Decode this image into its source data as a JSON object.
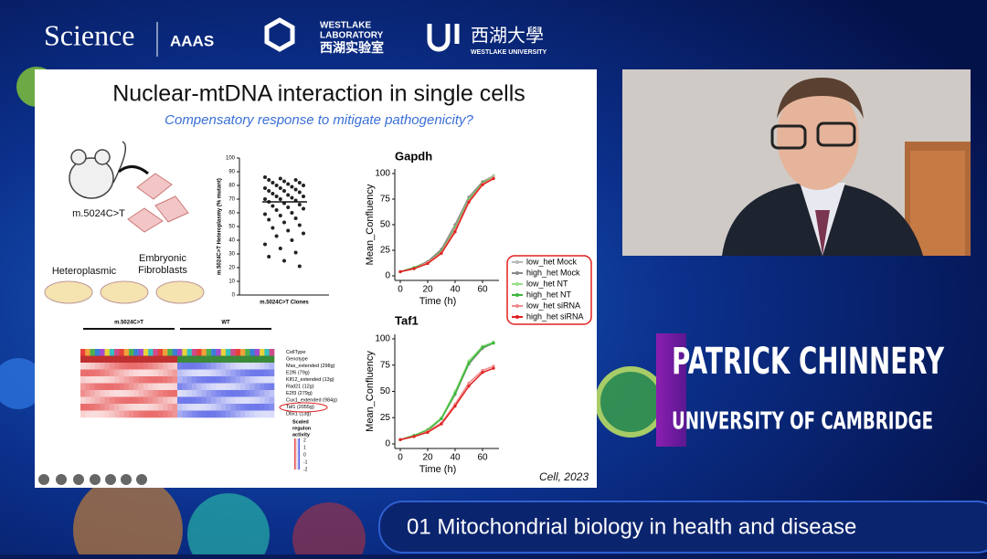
{
  "header": {
    "science": "Science",
    "aaas": "AAAS",
    "westlake_lab": [
      "WESTLAKE",
      "LABORATORY"
    ],
    "westlake_lab_cn": "西湖实验室",
    "westlake_uni_cn": "西湖大學",
    "westlake_uni": "WESTLAKE UNIVERSITY"
  },
  "slide": {
    "title": "Nuclear-mtDNA interaction in single cells",
    "subtitle": "Compensatory response to mitigate pathogenicity?",
    "mutation": "m.5024C>T",
    "fibroblasts": [
      "Embryonic",
      "Fibroblasts"
    ],
    "heteroplasmic": "Heteroplasmic",
    "citation": "Cell, 2023",
    "scatter": {
      "type": "scatter",
      "ylabel": "m.5024C>T Heteroplasmy (% mutant)",
      "xlabel": "m.5024C>T Clones",
      "ylim": [
        0,
        100
      ],
      "yticks": [
        0,
        10,
        20,
        30,
        40,
        50,
        60,
        70,
        80,
        90,
        100
      ],
      "median": 68,
      "values": [
        86,
        85,
        84,
        84,
        83,
        82,
        82,
        81,
        80,
        80,
        79,
        78,
        78,
        77,
        76,
        76,
        75,
        74,
        73,
        72,
        72,
        71,
        70,
        70,
        69,
        68,
        67,
        66,
        65,
        64,
        63,
        62,
        60,
        59,
        58,
        56,
        55,
        53,
        51,
        49,
        47,
        45,
        43,
        40,
        37,
        34,
        31,
        28,
        25,
        21
      ]
    },
    "line_charts": [
      {
        "type": "line",
        "title": "Gapdh",
        "xlabel": "Time (h)",
        "ylabel": "Mean_Confluency",
        "xlim": [
          -4,
          72
        ],
        "ylim": [
          0,
          100
        ],
        "xticks": [
          0,
          20,
          40,
          60
        ],
        "yticks": [
          0,
          25,
          50,
          75,
          100
        ],
        "x": [
          0,
          10,
          20,
          30,
          40,
          50,
          60,
          68
        ],
        "series": [
          {
            "name": "low_het Mock",
            "color": "#b8b8b8",
            "values": [
              4,
              8,
              14,
              25,
              49,
              76,
              92,
              98
            ]
          },
          {
            "name": "high_het Mock",
            "color": "#8a8a8a",
            "values": [
              4,
              8,
              14,
              26,
              50,
              77,
              92,
              97
            ]
          },
          {
            "name": "low_het NT",
            "color": "#9be08a",
            "values": [
              4,
              8,
              13,
              24,
              47,
              75,
              91,
              97
            ]
          },
          {
            "name": "high_het NT",
            "color": "#3cb83c",
            "values": [
              4,
              8,
              13,
              24,
              46,
              74,
              91,
              96
            ]
          },
          {
            "name": "low_het siRNA",
            "color": "#f08a8a",
            "values": [
              4,
              7,
              13,
              23,
              45,
              73,
              90,
              96
            ]
          },
          {
            "name": "high_het siRNA",
            "color": "#e02020",
            "values": [
              4,
              7,
              12,
              22,
              43,
              72,
              89,
              95
            ]
          }
        ]
      },
      {
        "type": "line",
        "title": "Taf1",
        "xlabel": "Time (h)",
        "ylabel": "Mean_Confluency",
        "xlim": [
          -4,
          72
        ],
        "ylim": [
          0,
          100
        ],
        "xticks": [
          0,
          20,
          40,
          60
        ],
        "yticks": [
          0,
          25,
          50,
          75,
          100
        ],
        "x": [
          0,
          10,
          20,
          30,
          40,
          50,
          60,
          68
        ],
        "series": [
          {
            "name": "low_het Mock",
            "color": "#b8b8b8",
            "values": [
              4,
              8,
              13,
              24,
              48,
              77,
              92,
              97
            ]
          },
          {
            "name": "high_het Mock",
            "color": "#8a8a8a",
            "values": [
              4,
              8,
              13,
              24,
              47,
              76,
              91,
              96
            ]
          },
          {
            "name": "low_het NT",
            "color": "#9be08a",
            "values": [
              4,
              8,
              14,
              25,
              50,
              79,
              93,
              97
            ]
          },
          {
            "name": "high_het NT",
            "color": "#3cb83c",
            "values": [
              4,
              8,
              13,
              24,
              48,
              77,
              92,
              96
            ]
          },
          {
            "name": "low_het siRNA",
            "color": "#f08a8a",
            "values": [
              4,
              7,
              12,
              20,
              38,
              58,
              70,
              74
            ]
          },
          {
            "name": "high_het siRNA",
            "color": "#e02020",
            "values": [
              4,
              7,
              11,
              19,
              36,
              55,
              68,
              72
            ]
          }
        ]
      }
    ],
    "heatmap": {
      "groups": [
        "m.5024C>T",
        "WT"
      ],
      "rows": [
        "CellType",
        "Genotype",
        "Max_extended (298g)",
        "E2f6 (79g)",
        "Klf12_extended (13g)",
        "Rad21 (12g)",
        "E2f3 (279g)",
        "Cux1_extended (984g)",
        "Taf1 (2055g)",
        "Dbx1 (13g)"
      ],
      "legend_title": [
        "Scaled",
        "regulon",
        "activity"
      ],
      "legend_ticks": [
        2,
        1,
        0,
        -1,
        -2
      ]
    }
  },
  "speaker": {
    "name": "PATRICK CHINNERY",
    "affiliation": "UNIVERSITY OF CAMBRIDGE"
  },
  "banner": "01 Mitochondrial biology in health and disease"
}
